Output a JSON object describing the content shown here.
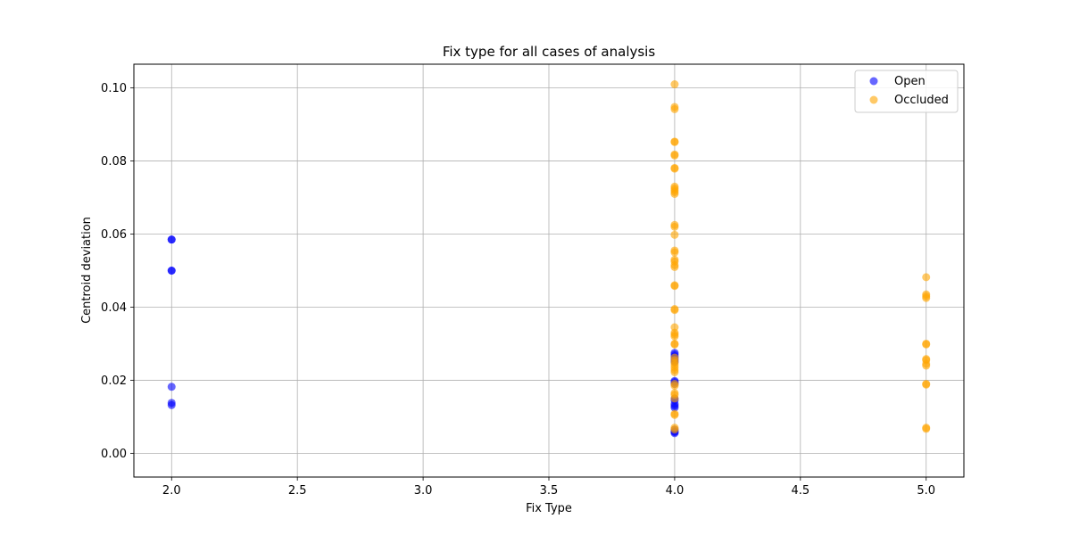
{
  "chart_data": {
    "type": "scatter",
    "title": "Fix type for all cases of analysis",
    "xlabel": "Fix Type",
    "ylabel": "Centroid deviation",
    "xlim": [
      1.85,
      5.15
    ],
    "ylim": [
      -0.0065,
      0.1065
    ],
    "xticks": [
      "2.0",
      "2.5",
      "3.0",
      "3.5",
      "4.0",
      "4.5",
      "5.0"
    ],
    "yticks": [
      "0.00",
      "0.02",
      "0.04",
      "0.06",
      "0.08",
      "0.10"
    ],
    "grid": true,
    "legend_position": "top-right",
    "series": [
      {
        "name": "Open",
        "color": "#0000ff",
        "alpha": 0.6,
        "points": [
          [
            2,
            0.0585
          ],
          [
            2,
            0.0585
          ],
          [
            2,
            0.05
          ],
          [
            2,
            0.05
          ],
          [
            2,
            0.0182
          ],
          [
            2,
            0.0138
          ],
          [
            2,
            0.0132
          ],
          [
            4,
            0.0275
          ],
          [
            4,
            0.027
          ],
          [
            4,
            0.0265
          ],
          [
            4,
            0.026
          ],
          [
            4,
            0.0255
          ],
          [
            4,
            0.025
          ],
          [
            4,
            0.0198
          ],
          [
            4,
            0.0195
          ],
          [
            4,
            0.019
          ],
          [
            4,
            0.015
          ],
          [
            4,
            0.0145
          ],
          [
            4,
            0.0135
          ],
          [
            4,
            0.013
          ],
          [
            4,
            0.0125
          ],
          [
            4,
            0.0065
          ],
          [
            4,
            0.006
          ],
          [
            4,
            0.0058
          ],
          [
            4,
            0.0055
          ]
        ]
      },
      {
        "name": "Occluded",
        "color": "#ffa500",
        "alpha": 0.6,
        "points": [
          [
            4,
            0.101
          ],
          [
            4,
            0.0948
          ],
          [
            4,
            0.0942
          ],
          [
            4,
            0.0853
          ],
          [
            4,
            0.0852
          ],
          [
            4,
            0.0818
          ],
          [
            4,
            0.0815
          ],
          [
            4,
            0.0781
          ],
          [
            4,
            0.0779
          ],
          [
            4,
            0.073
          ],
          [
            4,
            0.0725
          ],
          [
            4,
            0.072
          ],
          [
            4,
            0.0715
          ],
          [
            4,
            0.071
          ],
          [
            4,
            0.0625
          ],
          [
            4,
            0.062
          ],
          [
            4,
            0.0598
          ],
          [
            4,
            0.0555
          ],
          [
            4,
            0.055
          ],
          [
            4,
            0.053
          ],
          [
            4,
            0.0525
          ],
          [
            4,
            0.0515
          ],
          [
            4,
            0.051
          ],
          [
            4,
            0.046
          ],
          [
            4,
            0.0458
          ],
          [
            4,
            0.0395
          ],
          [
            4,
            0.0392
          ],
          [
            4,
            0.0345
          ],
          [
            4,
            0.033
          ],
          [
            4,
            0.0325
          ],
          [
            4,
            0.032
          ],
          [
            4,
            0.03
          ],
          [
            4,
            0.0298
          ],
          [
            4,
            0.0262
          ],
          [
            4,
            0.0255
          ],
          [
            4,
            0.0248
          ],
          [
            4,
            0.0242
          ],
          [
            4,
            0.0235
          ],
          [
            4,
            0.0228
          ],
          [
            4,
            0.0222
          ],
          [
            4,
            0.019
          ],
          [
            4,
            0.0185
          ],
          [
            4,
            0.0165
          ],
          [
            4,
            0.016
          ],
          [
            4,
            0.015
          ],
          [
            4,
            0.0108
          ],
          [
            4,
            0.0105
          ],
          [
            4,
            0.007
          ],
          [
            4,
            0.0065
          ],
          [
            5,
            0.0482
          ],
          [
            5,
            0.0435
          ],
          [
            5,
            0.043
          ],
          [
            5,
            0.0425
          ],
          [
            5,
            0.03
          ],
          [
            5,
            0.0298
          ],
          [
            5,
            0.0258
          ],
          [
            5,
            0.0255
          ],
          [
            5,
            0.0245
          ],
          [
            5,
            0.024
          ],
          [
            5,
            0.019
          ],
          [
            5,
            0.0188
          ],
          [
            5,
            0.007
          ],
          [
            5,
            0.0067
          ]
        ]
      }
    ]
  }
}
